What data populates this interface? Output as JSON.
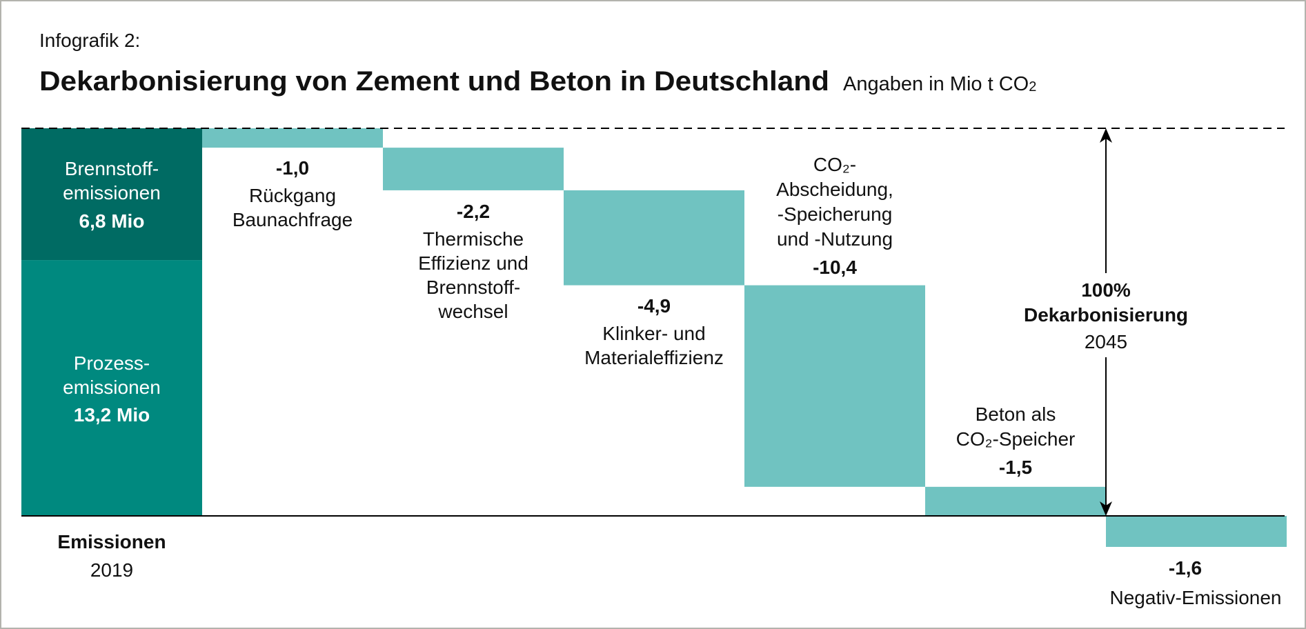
{
  "header": {
    "kicker": "Infografik 2:",
    "title": "Dekarbonisierung von Zement und Beton in Deutschland",
    "unit_prefix": "Angaben in Mio t CO",
    "unit_subscript": "2"
  },
  "colors": {
    "fuel": "#006b63",
    "process": "#00897f",
    "steps": "#70c3c1",
    "axis": "#000000",
    "frame": "#b3b3ad",
    "text": "#111111",
    "white_text": "#ffffff"
  },
  "chart_data": {
    "type": "waterfall",
    "title": "Dekarbonisierung von Zement und Beton in Deutschland",
    "unit": "Mio t CO2",
    "start": {
      "label_line1": "Emissionen",
      "label_line2": "2019",
      "total": 20.0,
      "segments": [
        {
          "name": "Prozessemissionen",
          "lines": [
            "Prozess-",
            "emissionen"
          ],
          "value_label": "13,2 Mio",
          "value": 13.2
        },
        {
          "name": "Brennstoffemissionen",
          "lines": [
            "Brennstoff-",
            "emissionen"
          ],
          "value_label": "6,8 Mio",
          "value": 6.8
        }
      ]
    },
    "steps": [
      {
        "value": -1.0,
        "value_label": "-1,0",
        "label": [
          "Rückgang",
          "Baunachfrage"
        ]
      },
      {
        "value": -2.2,
        "value_label": "-2,2",
        "label": [
          "Thermische",
          "Effizienz und",
          "Brennstoff-",
          "wechsel"
        ]
      },
      {
        "value": -4.9,
        "value_label": "-4,9",
        "label": [
          "Klinker- und",
          "Materialeffizienz"
        ]
      },
      {
        "value": -10.4,
        "value_label": "-10,4",
        "label": [
          "CO₂-",
          "Abscheidung,",
          "-Speicherung",
          "und -Nutzung"
        ]
      },
      {
        "value": -1.5,
        "value_label": "-1,5",
        "label": [
          "Beton als",
          "CO₂-Speicher"
        ]
      },
      {
        "value": -1.6,
        "value_label": "-1,6",
        "label": [
          "Negativ-Emissionen"
        ]
      }
    ],
    "target": {
      "line1": "100%",
      "line2": "Dekarbonisierung",
      "year": "2045"
    },
    "ylim": [
      -1.6,
      20.0
    ]
  }
}
